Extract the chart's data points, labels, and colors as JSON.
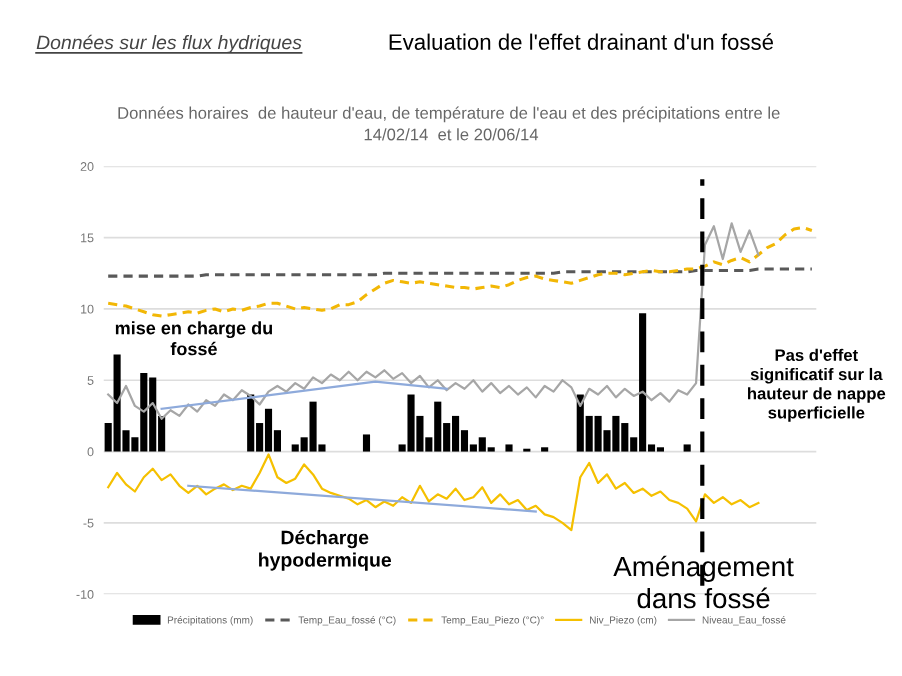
{
  "chart_data": {
    "type": "line",
    "title": "Données horaires  de hauteur d'eau, de température de l'eau et des précipitations entre le  14/02/14  et le 20/06/14",
    "annotations": [
      "Données sur les flux hydriques",
      "Evaluation de l'effet drainant d'un fossé",
      "mise en charge du fossé",
      "Décharge hypodermique",
      "Pas d'effet significatif sur la hauteur de nappe superficielle",
      "Aménagement dans fossé"
    ],
    "categories": [
      null,
      null,
      null,
      null,
      null,
      null,
      null,
      null,
      null,
      null,
      null,
      null,
      null,
      null,
      null,
      null,
      null,
      null,
      null,
      null,
      null,
      null,
      null,
      null,
      null,
      null,
      null,
      null,
      null,
      null,
      null,
      null,
      null,
      null,
      null,
      null,
      null,
      null,
      null,
      null,
      null,
      null,
      null,
      null,
      null,
      null,
      null,
      null,
      null,
      null,
      null,
      null,
      null,
      null,
      null,
      null,
      null,
      null,
      null,
      null,
      null,
      null,
      null,
      null,
      null,
      null,
      null,
      null,
      null,
      null,
      null,
      null,
      null,
      null,
      null,
      null,
      null,
      null,
      null,
      null
    ],
    "series": [
      {
        "name": "Précipitations (mm)",
        "type": "bar",
        "color": "#000000",
        "values": [
          2.0,
          6.8,
          1.5,
          1.0,
          5.5,
          5.2,
          2.5,
          0,
          0,
          0,
          0,
          0,
          0,
          0,
          0,
          0,
          4.0,
          2.0,
          3.0,
          1.5,
          0,
          0.5,
          1.0,
          3.5,
          0.5,
          0,
          0,
          0,
          0,
          1.2,
          0,
          0,
          0,
          0.5,
          4.0,
          2.5,
          1.0,
          3.5,
          2.0,
          2.5,
          1.5,
          0.5,
          1.0,
          0.3,
          0,
          0.5,
          0,
          0.2,
          0,
          0.3,
          0,
          0,
          0,
          4.0,
          2.5,
          2.5,
          1.5,
          2.5,
          2.0,
          1.0,
          9.7,
          0.5,
          0.3,
          0,
          0,
          0.5,
          null,
          null,
          null,
          null,
          null,
          null,
          null,
          null,
          null,
          null,
          null,
          null,
          null,
          null
        ]
      },
      {
        "name": "Temp_Eau_fossé (°C)",
        "line_style": "dashed",
        "color": "#595959",
        "values": [
          12.3,
          12.3,
          12.3,
          12.3,
          12.3,
          12.3,
          12.3,
          12.3,
          12.3,
          12.3,
          12.3,
          12.4,
          12.4,
          12.4,
          12.4,
          12.4,
          12.4,
          12.4,
          12.4,
          12.4,
          12.4,
          12.4,
          12.4,
          12.4,
          12.4,
          12.4,
          12.4,
          12.4,
          12.4,
          12.4,
          12.4,
          12.5,
          12.5,
          12.5,
          12.5,
          12.5,
          12.5,
          12.5,
          12.5,
          12.5,
          12.5,
          12.5,
          12.5,
          12.5,
          12.5,
          12.5,
          12.5,
          12.5,
          12.5,
          12.5,
          12.5,
          12.6,
          12.6,
          12.6,
          12.6,
          12.6,
          12.6,
          12.6,
          12.6,
          12.6,
          12.6,
          12.6,
          12.6,
          12.6,
          12.6,
          12.6,
          12.7,
          12.7,
          12.7,
          12.7,
          12.7,
          12.7,
          12.7,
          12.8,
          12.8,
          12.8,
          12.8,
          12.8,
          12.8,
          12.8
        ]
      },
      {
        "name": "Temp_Eau_Piezo (°C)°",
        "line_style": "dashed",
        "color": "#f2b705",
        "values": [
          10.4,
          10.3,
          10.2,
          10.0,
          9.8,
          9.6,
          9.5,
          9.6,
          9.7,
          9.8,
          9.7,
          9.9,
          10.0,
          9.8,
          10.0,
          9.9,
          10.1,
          10.2,
          10.4,
          10.4,
          10.2,
          10.0,
          10.1,
          10.0,
          9.9,
          10.0,
          10.3,
          10.3,
          10.5,
          11.0,
          11.4,
          11.8,
          12.0,
          11.9,
          11.8,
          11.9,
          11.8,
          11.7,
          11.6,
          11.5,
          11.5,
          11.4,
          11.5,
          11.6,
          11.5,
          11.7,
          12.0,
          12.2,
          12.3,
          12.1,
          12.0,
          11.9,
          11.8,
          12.0,
          12.2,
          12.4,
          12.5,
          12.5,
          12.4,
          12.5,
          12.6,
          12.7,
          12.6,
          12.6,
          12.7,
          12.8,
          12.8,
          13.0,
          13.3,
          13.1,
          13.4,
          13.6,
          13.3,
          13.8,
          14.3,
          14.6,
          15.2,
          15.6,
          15.7,
          15.5
        ]
      },
      {
        "name": "Niv_Piezo (cm)",
        "line_style": "solid",
        "color": "#f5c000",
        "values": [
          -2.5,
          -1.5,
          -2.3,
          -2.8,
          -1.8,
          -1.2,
          -2.0,
          -1.6,
          -2.4,
          -2.9,
          -2.4,
          -3.0,
          -2.6,
          -2.3,
          -2.7,
          -2.4,
          -2.6,
          -1.5,
          -0.2,
          -1.8,
          -2.2,
          -1.9,
          -0.9,
          -1.6,
          -2.6,
          -2.9,
          -3.1,
          -3.3,
          -3.7,
          -3.4,
          -3.9,
          -3.5,
          -3.8,
          -3.2,
          -3.6,
          -2.4,
          -3.5,
          -3.0,
          -3.3,
          -2.6,
          -3.4,
          -3.2,
          -2.5,
          -3.6,
          -3.0,
          -3.7,
          -3.4,
          -4.1,
          -3.8,
          -4.4,
          -4.6,
          -5.0,
          -5.5,
          -1.8,
          -0.8,
          -2.2,
          -1.6,
          -2.6,
          -2.2,
          -2.9,
          -2.6,
          -3.1,
          -2.8,
          -3.4,
          -3.6,
          -4.0,
          -4.9,
          -3.0,
          -3.6,
          -3.2,
          -3.7,
          -3.4,
          -3.9,
          -3.6,
          null,
          null,
          null,
          null,
          null,
          null
        ]
      },
      {
        "name": "Niveau_Eau_fossé",
        "line_style": "solid",
        "color": "#a6a6a6",
        "values": [
          4.0,
          3.4,
          4.6,
          3.2,
          2.8,
          3.4,
          2.3,
          2.9,
          2.5,
          3.3,
          2.8,
          3.6,
          3.2,
          4.0,
          3.6,
          4.3,
          3.9,
          3.3,
          4.2,
          4.6,
          4.2,
          4.8,
          4.4,
          5.2,
          4.8,
          5.4,
          5.0,
          5.6,
          5.0,
          5.6,
          5.2,
          5.7,
          5.1,
          5.5,
          4.8,
          5.3,
          4.5,
          5.0,
          4.3,
          4.8,
          4.4,
          5.0,
          4.2,
          4.8,
          4.1,
          4.6,
          4.0,
          4.5,
          3.8,
          4.6,
          4.2,
          5.0,
          4.5,
          3.2,
          4.4,
          4.0,
          4.6,
          3.8,
          4.4,
          3.9,
          4.2,
          3.6,
          4.1,
          3.5,
          4.3,
          4.0,
          4.8,
          14.5,
          15.8,
          13.5,
          16.0,
          14.0,
          15.5,
          13.8,
          null,
          null,
          null,
          null,
          null,
          null
        ]
      },
      {
        "line_style": "solid",
        "color": "#8eaadb",
        "values": [
          null,
          null,
          null,
          null,
          null,
          null,
          3.0,
          null,
          null,
          null,
          null,
          null,
          null,
          null,
          null,
          null,
          null,
          null,
          null,
          null,
          null,
          null,
          null,
          null,
          null,
          null,
          null,
          null,
          null,
          null,
          4.9,
          null,
          null,
          null,
          null,
          null,
          null,
          null,
          4.4,
          null,
          null,
          null,
          null,
          null,
          null,
          null,
          null,
          null,
          null,
          null,
          null,
          null,
          null,
          null,
          null,
          null,
          null,
          null,
          null,
          null,
          null,
          null,
          null,
          null,
          null,
          null,
          null,
          null,
          null,
          null,
          null,
          null,
          null,
          null,
          null,
          null,
          null,
          null,
          null,
          null
        ]
      },
      {
        "line_style": "solid",
        "color": "#8eaadb",
        "values": [
          null,
          null,
          null,
          null,
          null,
          null,
          null,
          null,
          null,
          -2.4,
          null,
          null,
          null,
          null,
          null,
          null,
          null,
          null,
          null,
          null,
          null,
          null,
          null,
          null,
          null,
          null,
          null,
          null,
          null,
          null,
          null,
          null,
          null,
          null,
          null,
          null,
          null,
          null,
          null,
          null,
          null,
          null,
          null,
          null,
          null,
          null,
          null,
          null,
          -4.2,
          null,
          null,
          null,
          null,
          null,
          null,
          null,
          null,
          null,
          null,
          null,
          null,
          null,
          null,
          null,
          null,
          null,
          null,
          null,
          null,
          null,
          null,
          null,
          null,
          null,
          null,
          null,
          null,
          null,
          null,
          null
        ]
      }
    ],
    "ylim": [
      -10,
      20
    ],
    "yticks": [
      -10,
      -5,
      0,
      5,
      10,
      15,
      20
    ],
    "grid": "y",
    "legend": "bottom",
    "tick_labels": "y"
  }
}
